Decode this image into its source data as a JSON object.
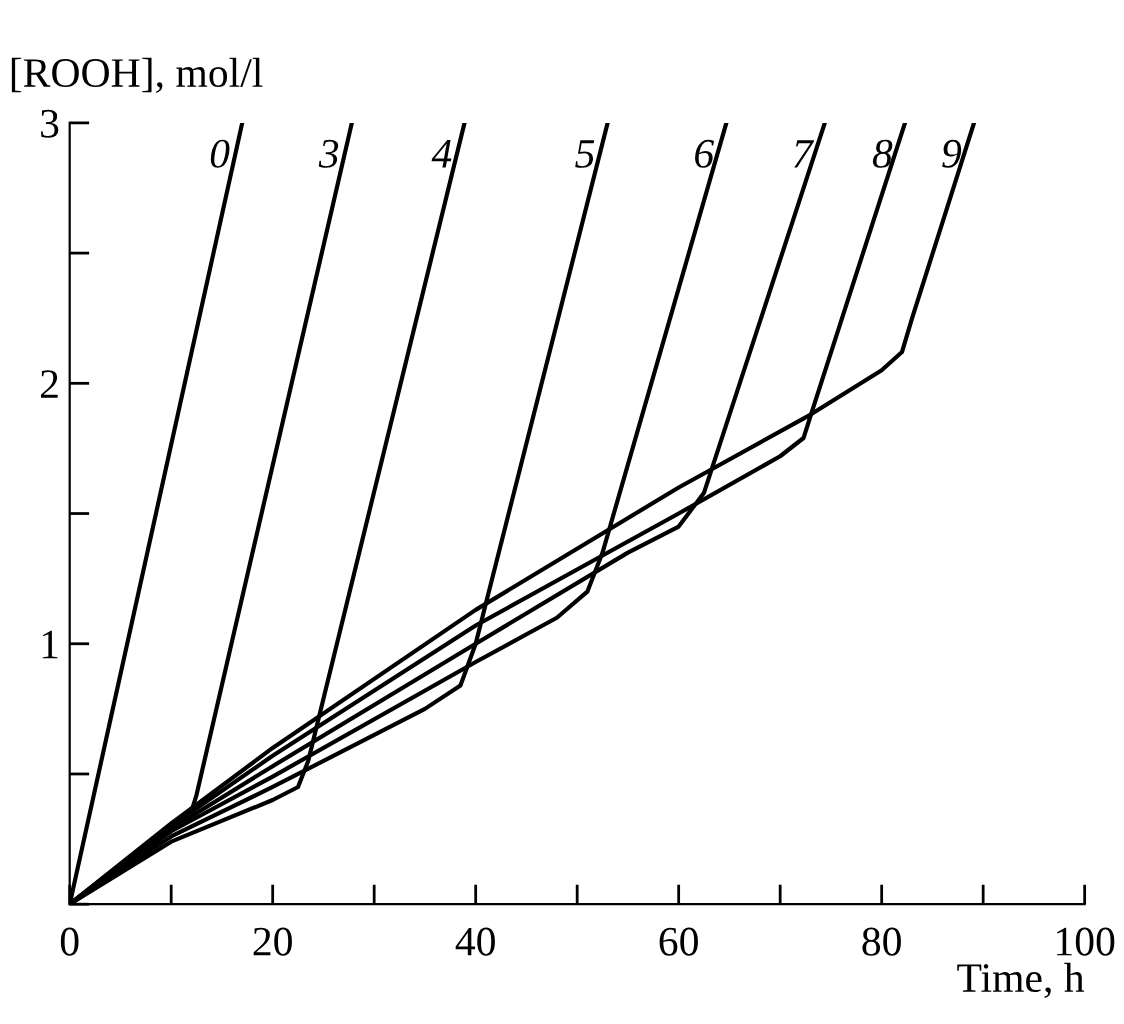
{
  "chart_data": {
    "type": "line",
    "xlabel": "Time, h",
    "ylabel": "[ROOH], mol/l",
    "xlim": [
      0,
      100
    ],
    "ylim": [
      0,
      3
    ],
    "xticks": [
      {
        "value": 0,
        "label": "0"
      },
      {
        "value": 10,
        "label": null
      },
      20,
      {
        "value": 30,
        "label": null
      },
      40,
      {
        "value": 50,
        "label": null
      },
      60,
      {
        "value": 70,
        "label": null
      },
      80,
      {
        "value": 90,
        "label": null
      },
      100
    ],
    "yticks": [
      {
        "value": 0,
        "label": null
      },
      {
        "value": 0.5,
        "label": null
      },
      1,
      {
        "value": 1.5,
        "label": null
      },
      2,
      {
        "value": 2.5,
        "label": null
      },
      3
    ],
    "grid": false,
    "legend": false,
    "marker": "none",
    "line_style": "solid",
    "series": [
      {
        "name": "0",
        "color": "#000000",
        "x": [
          0,
          17
        ],
        "values": [
          0,
          3
        ]
      },
      {
        "name": "3",
        "color": "#000000",
        "x": [
          0,
          10,
          12.1,
          12.5,
          27.8
        ],
        "values": [
          0,
          0.3,
          0.37,
          0.42,
          3
        ]
      },
      {
        "name": "4",
        "color": "#000000",
        "x": [
          0,
          10,
          20,
          22.5,
          23.5,
          38.9
        ],
        "values": [
          0,
          0.24,
          0.4,
          0.45,
          0.55,
          3
        ]
      },
      {
        "name": "5",
        "color": "#000000",
        "x": [
          0,
          10,
          20,
          35,
          38.5,
          40,
          53
        ],
        "values": [
          0,
          0.26,
          0.45,
          0.75,
          0.84,
          1.0,
          3
        ]
      },
      {
        "name": "6",
        "color": "#000000",
        "x": [
          0,
          10,
          20,
          40,
          48,
          51,
          52.5,
          64.7
        ],
        "values": [
          0,
          0.28,
          0.49,
          0.93,
          1.1,
          1.2,
          1.35,
          3
        ]
      },
      {
        "name": "7",
        "color": "#000000",
        "x": [
          0,
          10,
          20,
          40,
          55,
          60,
          62.5,
          74.4
        ],
        "values": [
          0,
          0.29,
          0.53,
          1.0,
          1.35,
          1.45,
          1.58,
          3
        ]
      },
      {
        "name": "8",
        "color": "#000000",
        "x": [
          0,
          10,
          20,
          40,
          60,
          70,
          72.3,
          73.2,
          82.3
        ],
        "values": [
          0,
          0.3,
          0.57,
          1.07,
          1.5,
          1.72,
          1.79,
          1.9,
          3
        ]
      },
      {
        "name": "9",
        "color": "#000000",
        "x": [
          0,
          10,
          20,
          40,
          60,
          73,
          80,
          82,
          83,
          89.1
        ],
        "values": [
          0,
          0.31,
          0.6,
          1.13,
          1.6,
          1.88,
          2.05,
          2.12,
          2.25,
          3
        ]
      }
    ]
  }
}
